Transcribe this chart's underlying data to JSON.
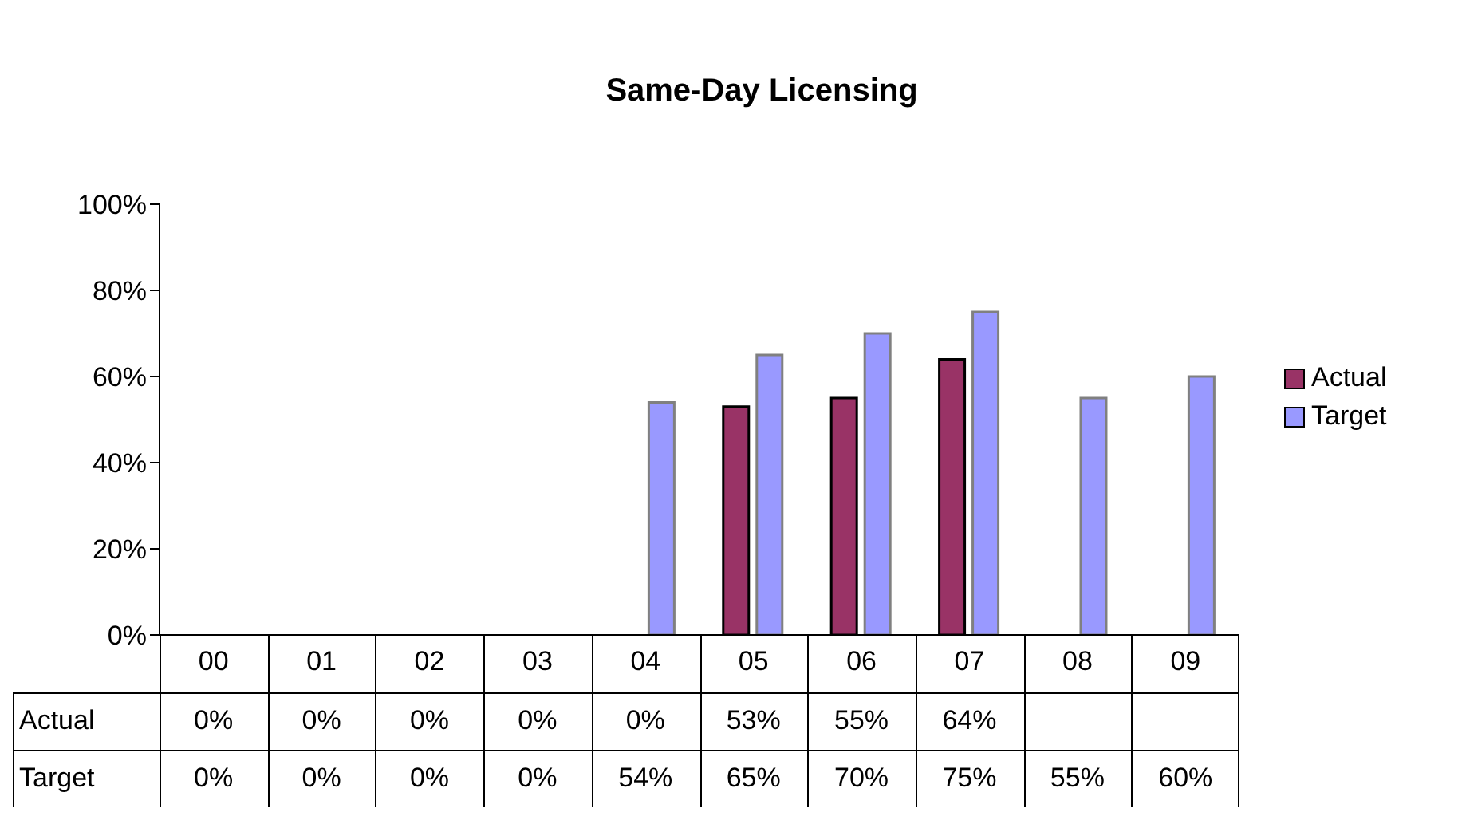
{
  "chart_data": {
    "type": "bar",
    "title": "Same-Day Licensing",
    "categories": [
      "00",
      "01",
      "02",
      "03",
      "04",
      "05",
      "06",
      "07",
      "08",
      "09"
    ],
    "series": [
      {
        "name": "Actual",
        "color": "#993366",
        "values": [
          0,
          0,
          0,
          0,
          0,
          53,
          55,
          64,
          null,
          null
        ],
        "value_labels": [
          "0%",
          "0%",
          "0%",
          "0%",
          "0%",
          "53%",
          "55%",
          "64%",
          null,
          null
        ]
      },
      {
        "name": "Target",
        "color": "#9999ff",
        "values": [
          0,
          0,
          0,
          0,
          54,
          65,
          70,
          75,
          55,
          60
        ],
        "value_labels": [
          "0%",
          "0%",
          "0%",
          "0%",
          "54%",
          "65%",
          "70%",
          "75%",
          "55%",
          "60%"
        ]
      }
    ],
    "ylim": [
      0,
      100
    ],
    "yticks": [
      {
        "value": 0,
        "label": "0%"
      },
      {
        "value": 20,
        "label": "20%"
      },
      {
        "value": 40,
        "label": "40%"
      },
      {
        "value": 60,
        "label": "60%"
      },
      {
        "value": 80,
        "label": "80%"
      },
      {
        "value": 100,
        "label": "100%"
      }
    ],
    "grid": false,
    "legend": "right"
  }
}
